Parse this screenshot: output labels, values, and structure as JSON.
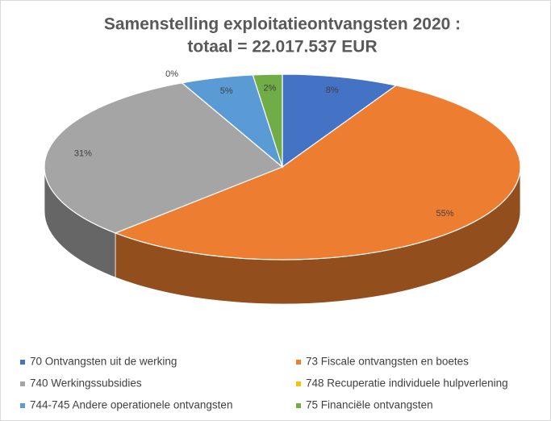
{
  "chart_data": {
    "type": "pie3d",
    "title": [
      "Samenstelling exploitatieontvangsten 2020 :",
      "totaal = 22.017.537 EUR"
    ],
    "categories": [
      "70 Ontvangsten uit de werking",
      "73 Fiscale ontvangsten en boetes",
      "740 Werkingssubsidies",
      "748 Recuperatie individuele hulpverlening",
      "744-745 Andere operationele ontvangsten",
      "75 Financiële ontvangsten"
    ],
    "values": [
      8,
      55,
      31,
      0,
      5,
      2
    ],
    "value_labels": [
      "8%",
      "55%",
      "31%",
      "0%",
      "5%",
      "2%"
    ],
    "colors": [
      "#4472c4",
      "#ed7d31",
      "#a5a5a5",
      "#ffc000",
      "#5b9bd5",
      "#70ad47"
    ],
    "legend": "bottom"
  }
}
